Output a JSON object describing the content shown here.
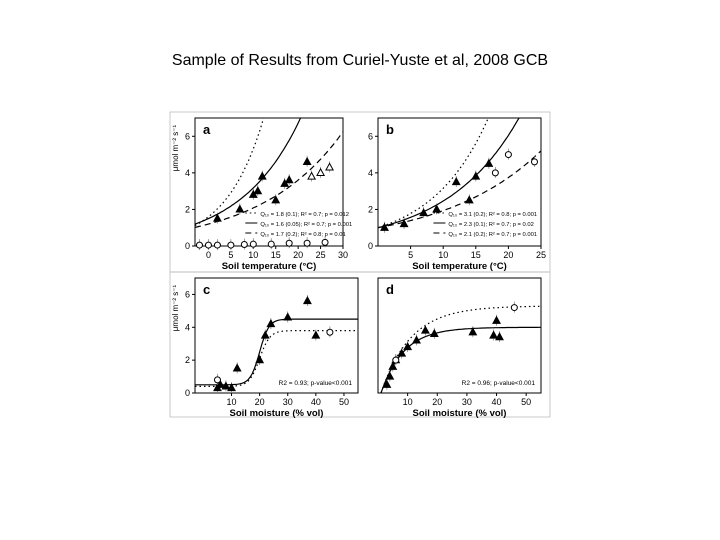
{
  "slide": {
    "title": "Sample of Results from Curiel-Yuste et al, 2008 GCB"
  },
  "colors": {
    "ink": "#000000",
    "background": "#ffffff",
    "panel_frame": "#bbbbbb"
  },
  "chart_data": [
    {
      "panel": "a",
      "type": "scatter",
      "xlabel": "Soil temperature (°C)",
      "ylabel": "μmol m⁻² s⁻¹",
      "xlim": [
        -3,
        30
      ],
      "ylim": [
        0,
        7
      ],
      "xticks": [
        0,
        5,
        10,
        15,
        20,
        25,
        30
      ],
      "yticks": [
        0,
        2,
        4,
        6
      ],
      "series": [
        {
          "marker": "filled-triangle",
          "x": [
            2,
            7,
            10,
            11,
            12,
            15,
            17,
            18,
            22
          ],
          "y": [
            1.5,
            2.0,
            2.8,
            3.0,
            3.8,
            2.5,
            3.4,
            3.6,
            4.6
          ]
        },
        {
          "marker": "open-triangle",
          "x": [
            23,
            25,
            27
          ],
          "y": [
            3.8,
            4.0,
            4.3
          ]
        },
        {
          "marker": "open-circle",
          "x": [
            -2,
            0,
            2,
            5,
            8,
            10,
            14,
            18,
            22,
            26
          ],
          "y": [
            0.05,
            0.05,
            0.05,
            0.05,
            0.08,
            0.1,
            0.1,
            0.15,
            0.15,
            0.2
          ]
        }
      ],
      "fits": [
        {
          "style": "dotted",
          "a": 1.6,
          "b": 0.12
        },
        {
          "style": "solid",
          "a": 1.5,
          "b": 0.075
        },
        {
          "style": "dashed",
          "a": 1.2,
          "b": 0.055
        }
      ],
      "legend_position": "bottom-right",
      "legend": [
        "Q₁₀ = 1.8 (0.1); R² = 0.7; p = 0.012",
        "Q₁₀ = 1.6 (0.05); R² = 0.7; p = 0.001",
        "Q₁₀ = 1.7 (0.2); R² = 0.8; p = 0.01"
      ]
    },
    {
      "panel": "b",
      "type": "scatter",
      "xlabel": "Soil temperature (°C)",
      "ylabel": "",
      "xlim": [
        0,
        25
      ],
      "ylim": [
        0,
        7
      ],
      "xticks": [
        5,
        10,
        15,
        20,
        25
      ],
      "yticks": [
        0,
        2,
        4,
        6
      ],
      "series": [
        {
          "marker": "filled-triangle",
          "x": [
            1,
            4,
            7,
            9,
            12,
            14,
            15,
            17
          ],
          "y": [
            1.0,
            1.2,
            1.8,
            2.0,
            3.5,
            2.5,
            3.8,
            4.5
          ]
        },
        {
          "marker": "open-circle",
          "x": [
            18,
            20,
            24
          ],
          "y": [
            4.0,
            5.0,
            4.6
          ]
        }
      ],
      "fits": [
        {
          "style": "dotted",
          "a": 1.0,
          "b": 0.115
        },
        {
          "style": "solid",
          "a": 1.0,
          "b": 0.09
        },
        {
          "style": "dashed",
          "a": 1.0,
          "b": 0.066
        }
      ],
      "legend_position": "bottom-right",
      "legend": [
        "Q₁₀ = 3.1 (0.2); R² = 0.8; p = 0.001",
        "Q₁₀ = 2.3 (0.1); R² = 0.7; p = 0.02",
        "Q₁₀ = 2.1 (0.2); R² = 0.7; p = 0.001"
      ]
    },
    {
      "panel": "c",
      "type": "scatter",
      "xlabel": "Soil moisture (% vol)",
      "ylabel": "μmol m⁻² s⁻¹",
      "xlim": [
        -3,
        55
      ],
      "ylim": [
        0,
        7
      ],
      "xticks": [
        10,
        20,
        30,
        40,
        50
      ],
      "yticks": [
        0,
        2,
        4,
        6
      ],
      "series": [
        {
          "marker": "filled-triangle",
          "x": [
            5,
            6,
            8,
            10,
            12,
            20,
            22,
            24,
            30,
            37,
            40
          ],
          "y": [
            0.3,
            0.5,
            0.4,
            0.3,
            1.5,
            2.0,
            3.5,
            4.2,
            4.6,
            5.6,
            3.5
          ]
        },
        {
          "marker": "open-circle",
          "x": [
            5,
            45
          ],
          "y": [
            0.8,
            3.7
          ]
        }
      ],
      "fits": [
        {
          "style": "solid",
          "lo": 0.5,
          "hi": 4.5,
          "mid": 20,
          "k": 0.6
        },
        {
          "style": "dotted",
          "lo": 0.4,
          "hi": 3.8,
          "mid": 20,
          "k": 0.55
        }
      ],
      "legend_position": "bottom-right",
      "annotation": "R2 = 0.93; p-value<0.001"
    },
    {
      "panel": "d",
      "type": "scatter",
      "xlabel": "Soil moisture (% vol)",
      "ylabel": "",
      "xlim": [
        0,
        55
      ],
      "ylim": [
        0,
        7
      ],
      "xticks": [
        10,
        20,
        30,
        40,
        50
      ],
      "yticks": [],
      "series": [
        {
          "marker": "filled-triangle",
          "x": [
            3,
            4,
            5,
            6,
            8,
            10,
            13,
            16,
            19,
            32,
            39,
            40,
            41
          ],
          "y": [
            0.5,
            1.0,
            1.6,
            2.0,
            2.4,
            2.8,
            3.2,
            3.8,
            3.6,
            3.7,
            3.5,
            4.4,
            3.4
          ]
        },
        {
          "marker": "open-circle",
          "x": [
            6,
            46
          ],
          "y": [
            2.0,
            5.2
          ]
        }
      ],
      "fits": [
        {
          "style": "solid",
          "A": 4.0,
          "k": 0.13,
          "x0": 1
        },
        {
          "style": "dotted",
          "A": 5.3,
          "k": 0.1,
          "x0": 1
        }
      ],
      "legend_position": "bottom-right",
      "annotation": "R2 = 0.96; p-value<0.001"
    }
  ]
}
